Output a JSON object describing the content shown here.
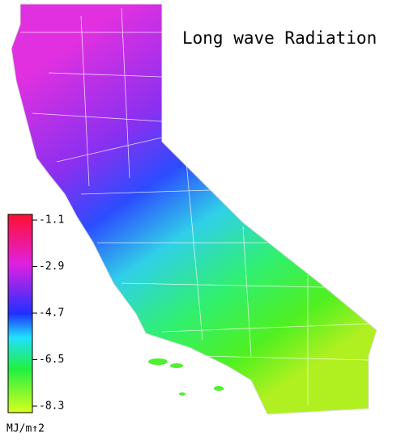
{
  "title": "Long wave Radiation",
  "colorbar": {
    "lim": [
      -0.88,
      -8.55
    ],
    "ticks": [
      -1.1,
      -2.9,
      -4.7,
      -6.5,
      -8.3
    ],
    "unit": "MJ/m↑2"
  }
}
